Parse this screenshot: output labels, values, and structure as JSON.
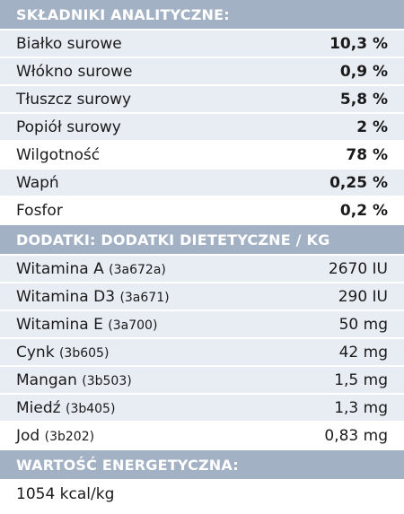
{
  "analytical": {
    "title": "SKŁADNIKI ANALITYCZNE:",
    "rows": [
      {
        "label": "Białko surowe",
        "value": "10,3 %"
      },
      {
        "label": "Włókno surowe",
        "value": "0,9 %"
      },
      {
        "label": "Tłuszcz surowy",
        "value": "5,8 %"
      },
      {
        "label": "Popiół surowy",
        "value": "2 %"
      },
      {
        "label": "Wilgotność",
        "value": "78 %"
      },
      {
        "label": "Wapń",
        "value": "0,25 %"
      },
      {
        "label": "Fosfor",
        "value": "0,2 %"
      }
    ]
  },
  "additives": {
    "title": "DODATKI: DODATKI DIETETYCZNE / KG",
    "rows": [
      {
        "label": "Witamina A",
        "code": "(3a672a)",
        "value": "2670 IU"
      },
      {
        "label": "Witamina D3",
        "code": "(3a671)",
        "value": "290 IU"
      },
      {
        "label": "Witamina E",
        "code": "(3a700)",
        "value": "50 mg"
      },
      {
        "label": "Cynk",
        "code": "(3b605)",
        "value": "42 mg"
      },
      {
        "label": "Mangan",
        "code": "(3b503)",
        "value": "1,5 mg"
      },
      {
        "label": "Miedź",
        "code": "(3b405)",
        "value": "1,3 mg"
      },
      {
        "label": "Jod",
        "code": "(3b202)",
        "value": "0,83 mg"
      }
    ]
  },
  "energy": {
    "title": "WARTOŚĆ ENERGETYCZNA:",
    "value": "1054 kcal/kg"
  },
  "colors": {
    "header_bg": "#a3b1c5",
    "row_alt_bg": "#e8edf4"
  }
}
